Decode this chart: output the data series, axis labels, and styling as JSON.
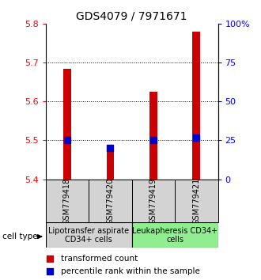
{
  "title": "GDS4079 / 7971671",
  "samples": [
    "GSM779418",
    "GSM779420",
    "GSM779419",
    "GSM779421"
  ],
  "transformed_counts": [
    5.685,
    5.475,
    5.625,
    5.78
  ],
  "percentile_ranks": [
    25,
    20,
    25,
    27
  ],
  "ylim_left": [
    5.4,
    5.8
  ],
  "ylim_right": [
    0,
    100
  ],
  "yticks_left": [
    5.4,
    5.5,
    5.6,
    5.7,
    5.8
  ],
  "yticks_right": [
    0,
    25,
    50,
    75,
    100
  ],
  "ytick_labels_right": [
    "0",
    "25",
    "50",
    "75",
    "100%"
  ],
  "bar_color": "#cc0000",
  "dot_color": "#0000cc",
  "bar_width": 0.18,
  "dot_size": 35,
  "group1_label": "Lipotransfer aspirate\nCD34+ cells",
  "group2_label": "Leukapheresis CD34+\ncells",
  "group1_color": "#d3d3d3",
  "group2_color": "#90ee90",
  "cell_type_label": "cell type",
  "legend_bar_label": "transformed count",
  "legend_dot_label": "percentile rank within the sample",
  "title_fontsize": 10,
  "tick_fontsize": 8,
  "sample_fontsize": 7,
  "group_fontsize": 7,
  "legend_fontsize": 7.5
}
